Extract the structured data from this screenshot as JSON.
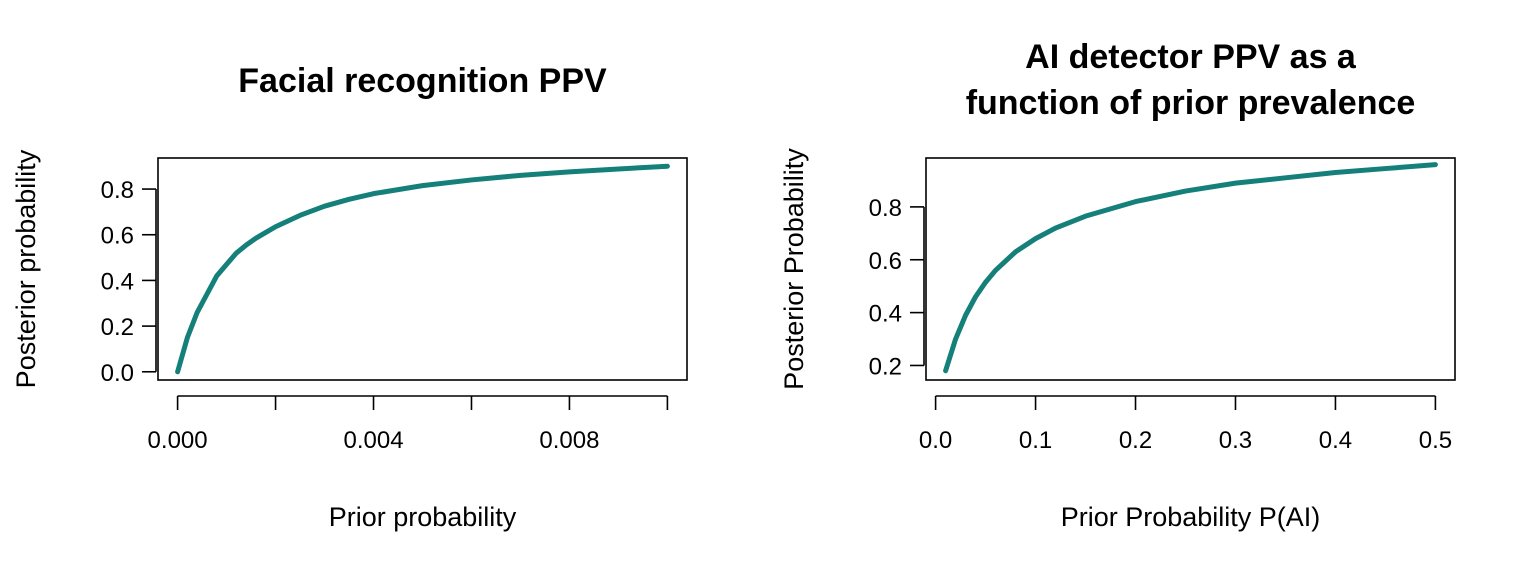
{
  "chart_data": [
    {
      "type": "line",
      "title": [
        "Facial recognition PPV"
      ],
      "xlabel": "Prior probability",
      "ylabel": "Posterior probability",
      "xlim": [
        -0.0004,
        0.0104
      ],
      "ylim": [
        -0.036,
        0.936
      ],
      "x_ticks": [
        0,
        0.002,
        0.004,
        0.006,
        0.008,
        0.01
      ],
      "x_tick_labels": [
        "0.000",
        "",
        "0.004",
        "",
        "0.008",
        ""
      ],
      "y_ticks": [
        0,
        0.2,
        0.4,
        0.6,
        0.8
      ],
      "y_tick_labels": [
        "0.0",
        "0.2",
        "0.4",
        "0.6",
        "0.8"
      ],
      "line_color": "#15807A",
      "series": [
        {
          "x": [
            0,
            0.0002,
            0.0004,
            0.0006,
            0.0008,
            0.001,
            0.0012,
            0.0014,
            0.0016,
            0.0018,
            0.002,
            0.0025,
            0.003,
            0.0035,
            0.004,
            0.005,
            0.006,
            0.007,
            0.008,
            0.009,
            0.01
          ],
          "y": [
            0,
            0.15,
            0.26,
            0.34,
            0.42,
            0.47,
            0.52,
            0.555,
            0.585,
            0.61,
            0.635,
            0.685,
            0.725,
            0.755,
            0.78,
            0.815,
            0.84,
            0.86,
            0.875,
            0.888,
            0.9
          ]
        }
      ]
    },
    {
      "type": "line",
      "title": [
        "AI detector PPV as a",
        "function of prior prevalence"
      ],
      "xlabel": "Prior Probability P(AI)",
      "ylabel": "Posterior Probability",
      "xlim": [
        -0.0096,
        0.5196
      ],
      "ylim": [
        0.145,
        0.985
      ],
      "x_ticks": [
        0,
        0.1,
        0.2,
        0.3,
        0.4,
        0.5
      ],
      "x_tick_labels": [
        "0.0",
        "0.1",
        "0.2",
        "0.3",
        "0.4",
        "0.5"
      ],
      "y_ticks": [
        0.2,
        0.4,
        0.6,
        0.8
      ],
      "y_tick_labels": [
        "0.2",
        "0.4",
        "0.6",
        "0.8"
      ],
      "line_color": "#15807A",
      "series": [
        {
          "x": [
            0.01,
            0.02,
            0.03,
            0.04,
            0.05,
            0.06,
            0.08,
            0.1,
            0.12,
            0.15,
            0.2,
            0.25,
            0.3,
            0.35,
            0.4,
            0.45,
            0.5
          ],
          "y": [
            0.18,
            0.3,
            0.39,
            0.46,
            0.515,
            0.56,
            0.63,
            0.68,
            0.72,
            0.765,
            0.82,
            0.86,
            0.89,
            0.91,
            0.93,
            0.945,
            0.96
          ]
        }
      ]
    }
  ]
}
